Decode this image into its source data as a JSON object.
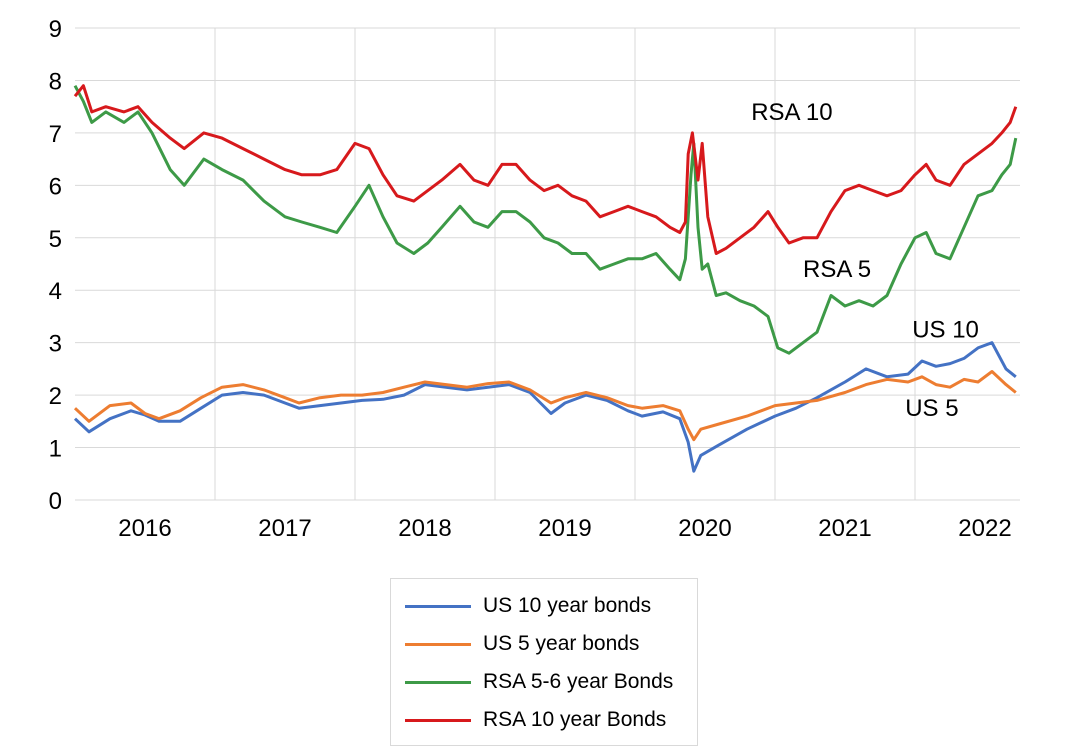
{
  "chart_data": {
    "type": "line",
    "title": "",
    "xlabel": "",
    "ylabel": "",
    "ylim": [
      0,
      9
    ],
    "yticks": [
      "0",
      "1",
      "2",
      "3",
      "4",
      "5",
      "6",
      "7",
      "8",
      "9"
    ],
    "xlim": [
      2015.5,
      2022.25
    ],
    "xticks": [
      {
        "label": "2016",
        "value": 2016.0
      },
      {
        "label": "2017",
        "value": 2017.0
      },
      {
        "label": "2018",
        "value": 2018.0
      },
      {
        "label": "2019",
        "value": 2019.0
      },
      {
        "label": "2020",
        "value": 2020.0
      },
      {
        "label": "2021",
        "value": 2021.0
      },
      {
        "label": "2022",
        "value": 2022.0
      }
    ],
    "grid": {
      "vertical": true,
      "horizontal": true
    },
    "legend_position": "bottom",
    "series": [
      {
        "name": "US 10 year bonds",
        "color": "#4472c4",
        "points": [
          [
            2015.5,
            1.55
          ],
          [
            2015.6,
            1.3
          ],
          [
            2015.75,
            1.55
          ],
          [
            2015.9,
            1.7
          ],
          [
            2016.0,
            1.62
          ],
          [
            2016.1,
            1.5
          ],
          [
            2016.25,
            1.5
          ],
          [
            2016.4,
            1.75
          ],
          [
            2016.55,
            2.0
          ],
          [
            2016.7,
            2.05
          ],
          [
            2016.85,
            2.0
          ],
          [
            2017.0,
            1.85
          ],
          [
            2017.1,
            1.75
          ],
          [
            2017.25,
            1.8
          ],
          [
            2017.4,
            1.85
          ],
          [
            2017.55,
            1.9
          ],
          [
            2017.7,
            1.92
          ],
          [
            2017.85,
            2.0
          ],
          [
            2018.0,
            2.2
          ],
          [
            2018.15,
            2.15
          ],
          [
            2018.3,
            2.1
          ],
          [
            2018.45,
            2.15
          ],
          [
            2018.6,
            2.2
          ],
          [
            2018.75,
            2.05
          ],
          [
            2018.9,
            1.65
          ],
          [
            2019.0,
            1.85
          ],
          [
            2019.15,
            2.0
          ],
          [
            2019.3,
            1.9
          ],
          [
            2019.45,
            1.7
          ],
          [
            2019.55,
            1.6
          ],
          [
            2019.7,
            1.68
          ],
          [
            2019.82,
            1.55
          ],
          [
            2019.88,
            1.1
          ],
          [
            2019.92,
            0.55
          ],
          [
            2019.97,
            0.85
          ],
          [
            2020.1,
            1.05
          ],
          [
            2020.3,
            1.35
          ],
          [
            2020.5,
            1.6
          ],
          [
            2020.65,
            1.75
          ],
          [
            2020.8,
            1.95
          ],
          [
            2021.0,
            2.25
          ],
          [
            2021.15,
            2.5
          ],
          [
            2021.3,
            2.35
          ],
          [
            2021.45,
            2.4
          ],
          [
            2021.55,
            2.65
          ],
          [
            2021.65,
            2.55
          ],
          [
            2021.75,
            2.6
          ],
          [
            2021.85,
            2.7
          ],
          [
            2021.95,
            2.9
          ],
          [
            2022.05,
            3.0
          ],
          [
            2022.15,
            2.5
          ],
          [
            2022.22,
            2.35
          ]
        ]
      },
      {
        "name": "US 5 year bonds",
        "color": "#ed7d31",
        "points": [
          [
            2015.5,
            1.75
          ],
          [
            2015.6,
            1.5
          ],
          [
            2015.75,
            1.8
          ],
          [
            2015.9,
            1.85
          ],
          [
            2016.0,
            1.65
          ],
          [
            2016.1,
            1.55
          ],
          [
            2016.25,
            1.7
          ],
          [
            2016.4,
            1.95
          ],
          [
            2016.55,
            2.15
          ],
          [
            2016.7,
            2.2
          ],
          [
            2016.85,
            2.1
          ],
          [
            2017.0,
            1.95
          ],
          [
            2017.1,
            1.85
          ],
          [
            2017.25,
            1.95
          ],
          [
            2017.4,
            2.0
          ],
          [
            2017.55,
            2.0
          ],
          [
            2017.7,
            2.05
          ],
          [
            2017.85,
            2.15
          ],
          [
            2018.0,
            2.25
          ],
          [
            2018.15,
            2.2
          ],
          [
            2018.3,
            2.15
          ],
          [
            2018.45,
            2.22
          ],
          [
            2018.6,
            2.25
          ],
          [
            2018.75,
            2.1
          ],
          [
            2018.9,
            1.85
          ],
          [
            2019.0,
            1.95
          ],
          [
            2019.15,
            2.05
          ],
          [
            2019.3,
            1.95
          ],
          [
            2019.45,
            1.8
          ],
          [
            2019.55,
            1.75
          ],
          [
            2019.7,
            1.8
          ],
          [
            2019.82,
            1.7
          ],
          [
            2019.88,
            1.35
          ],
          [
            2019.92,
            1.15
          ],
          [
            2019.97,
            1.35
          ],
          [
            2020.1,
            1.45
          ],
          [
            2020.3,
            1.6
          ],
          [
            2020.5,
            1.8
          ],
          [
            2020.65,
            1.85
          ],
          [
            2020.8,
            1.9
          ],
          [
            2021.0,
            2.05
          ],
          [
            2021.15,
            2.2
          ],
          [
            2021.3,
            2.3
          ],
          [
            2021.45,
            2.25
          ],
          [
            2021.55,
            2.35
          ],
          [
            2021.65,
            2.2
          ],
          [
            2021.75,
            2.15
          ],
          [
            2021.85,
            2.3
          ],
          [
            2021.95,
            2.25
          ],
          [
            2022.05,
            2.45
          ],
          [
            2022.15,
            2.2
          ],
          [
            2022.22,
            2.05
          ]
        ]
      },
      {
        "name": "RSA 5-6 year Bonds",
        "color": "#3d9a47",
        "points": [
          [
            2015.5,
            7.9
          ],
          [
            2015.56,
            7.6
          ],
          [
            2015.62,
            7.2
          ],
          [
            2015.72,
            7.4
          ],
          [
            2015.85,
            7.2
          ],
          [
            2015.95,
            7.4
          ],
          [
            2016.05,
            7.0
          ],
          [
            2016.18,
            6.3
          ],
          [
            2016.28,
            6.0
          ],
          [
            2016.42,
            6.5
          ],
          [
            2016.55,
            6.3
          ],
          [
            2016.7,
            6.1
          ],
          [
            2016.85,
            5.7
          ],
          [
            2017.0,
            5.4
          ],
          [
            2017.12,
            5.3
          ],
          [
            2017.25,
            5.2
          ],
          [
            2017.37,
            5.1
          ],
          [
            2017.5,
            5.6
          ],
          [
            2017.6,
            6.0
          ],
          [
            2017.7,
            5.4
          ],
          [
            2017.8,
            4.9
          ],
          [
            2017.92,
            4.7
          ],
          [
            2018.02,
            4.9
          ],
          [
            2018.12,
            5.2
          ],
          [
            2018.25,
            5.6
          ],
          [
            2018.35,
            5.3
          ],
          [
            2018.45,
            5.2
          ],
          [
            2018.55,
            5.5
          ],
          [
            2018.65,
            5.5
          ],
          [
            2018.75,
            5.3
          ],
          [
            2018.85,
            5.0
          ],
          [
            2018.95,
            4.9
          ],
          [
            2019.05,
            4.7
          ],
          [
            2019.15,
            4.7
          ],
          [
            2019.25,
            4.4
          ],
          [
            2019.35,
            4.5
          ],
          [
            2019.45,
            4.6
          ],
          [
            2019.55,
            4.6
          ],
          [
            2019.65,
            4.7
          ],
          [
            2019.75,
            4.4
          ],
          [
            2019.82,
            4.2
          ],
          [
            2019.86,
            4.6
          ],
          [
            2019.9,
            6.2
          ],
          [
            2019.92,
            6.8
          ],
          [
            2019.95,
            5.2
          ],
          [
            2019.98,
            4.4
          ],
          [
            2020.02,
            4.5
          ],
          [
            2020.08,
            3.9
          ],
          [
            2020.15,
            3.95
          ],
          [
            2020.25,
            3.8
          ],
          [
            2020.35,
            3.7
          ],
          [
            2020.45,
            3.5
          ],
          [
            2020.52,
            2.9
          ],
          [
            2020.6,
            2.8
          ],
          [
            2020.7,
            3.0
          ],
          [
            2020.8,
            3.2
          ],
          [
            2020.9,
            3.9
          ],
          [
            2021.0,
            3.7
          ],
          [
            2021.1,
            3.8
          ],
          [
            2021.2,
            3.7
          ],
          [
            2021.3,
            3.9
          ],
          [
            2021.4,
            4.5
          ],
          [
            2021.5,
            5.0
          ],
          [
            2021.58,
            5.1
          ],
          [
            2021.65,
            4.7
          ],
          [
            2021.75,
            4.6
          ],
          [
            2021.85,
            5.2
          ],
          [
            2021.95,
            5.8
          ],
          [
            2022.05,
            5.9
          ],
          [
            2022.12,
            6.2
          ],
          [
            2022.18,
            6.4
          ],
          [
            2022.22,
            6.9
          ]
        ]
      },
      {
        "name": "RSA 10 year Bonds",
        "color": "#d7191c",
        "points": [
          [
            2015.5,
            7.7
          ],
          [
            2015.56,
            7.9
          ],
          [
            2015.62,
            7.4
          ],
          [
            2015.72,
            7.5
          ],
          [
            2015.85,
            7.4
          ],
          [
            2015.95,
            7.5
          ],
          [
            2016.05,
            7.2
          ],
          [
            2016.18,
            6.9
          ],
          [
            2016.28,
            6.7
          ],
          [
            2016.42,
            7.0
          ],
          [
            2016.55,
            6.9
          ],
          [
            2016.7,
            6.7
          ],
          [
            2016.85,
            6.5
          ],
          [
            2017.0,
            6.3
          ],
          [
            2017.12,
            6.2
          ],
          [
            2017.25,
            6.2
          ],
          [
            2017.37,
            6.3
          ],
          [
            2017.5,
            6.8
          ],
          [
            2017.6,
            6.7
          ],
          [
            2017.7,
            6.2
          ],
          [
            2017.8,
            5.8
          ],
          [
            2017.92,
            5.7
          ],
          [
            2018.02,
            5.9
          ],
          [
            2018.12,
            6.1
          ],
          [
            2018.25,
            6.4
          ],
          [
            2018.35,
            6.1
          ],
          [
            2018.45,
            6.0
          ],
          [
            2018.55,
            6.4
          ],
          [
            2018.65,
            6.4
          ],
          [
            2018.75,
            6.1
          ],
          [
            2018.85,
            5.9
          ],
          [
            2018.95,
            6.0
          ],
          [
            2019.05,
            5.8
          ],
          [
            2019.15,
            5.7
          ],
          [
            2019.25,
            5.4
          ],
          [
            2019.35,
            5.5
          ],
          [
            2019.45,
            5.6
          ],
          [
            2019.55,
            5.5
          ],
          [
            2019.65,
            5.4
          ],
          [
            2019.75,
            5.2
          ],
          [
            2019.82,
            5.1
          ],
          [
            2019.86,
            5.3
          ],
          [
            2019.88,
            6.6
          ],
          [
            2019.91,
            7.0
          ],
          [
            2019.95,
            6.1
          ],
          [
            2019.98,
            6.8
          ],
          [
            2020.02,
            5.4
          ],
          [
            2020.08,
            4.7
          ],
          [
            2020.15,
            4.8
          ],
          [
            2020.25,
            5.0
          ],
          [
            2020.35,
            5.2
          ],
          [
            2020.45,
            5.5
          ],
          [
            2020.52,
            5.2
          ],
          [
            2020.6,
            4.9
          ],
          [
            2020.7,
            5.0
          ],
          [
            2020.8,
            5.0
          ],
          [
            2020.9,
            5.5
          ],
          [
            2021.0,
            5.9
          ],
          [
            2021.1,
            6.0
          ],
          [
            2021.2,
            5.9
          ],
          [
            2021.3,
            5.8
          ],
          [
            2021.4,
            5.9
          ],
          [
            2021.5,
            6.2
          ],
          [
            2021.58,
            6.4
          ],
          [
            2021.65,
            6.1
          ],
          [
            2021.75,
            6.0
          ],
          [
            2021.85,
            6.4
          ],
          [
            2021.95,
            6.6
          ],
          [
            2022.05,
            6.8
          ],
          [
            2022.12,
            7.0
          ],
          [
            2022.18,
            7.2
          ],
          [
            2022.22,
            7.5
          ]
        ]
      }
    ],
    "annotations": [
      {
        "text": "RSA 10",
        "x": 2020.33,
        "y": 7.25
      },
      {
        "text": "RSA 5",
        "x": 2020.7,
        "y": 4.25
      },
      {
        "text": "US 10",
        "x": 2021.48,
        "y": 3.1
      },
      {
        "text": "US 5",
        "x": 2021.43,
        "y": 1.6
      }
    ]
  }
}
